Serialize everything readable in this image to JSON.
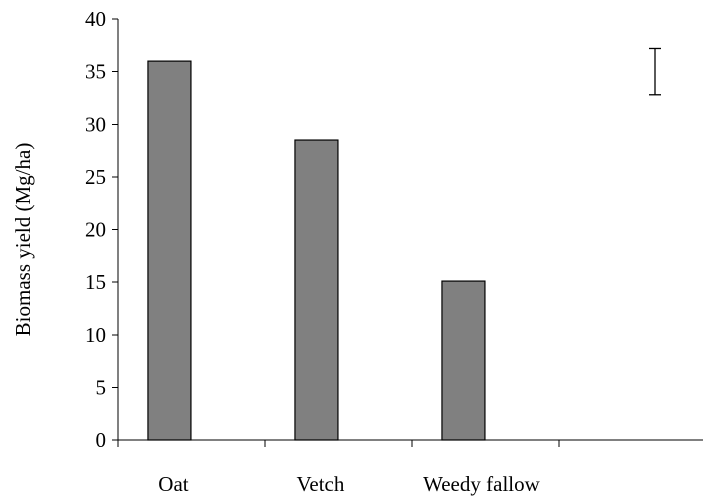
{
  "chart_data": {
    "type": "bar",
    "categories": [
      "Oat",
      "Vetch",
      "Weedy fallow"
    ],
    "values": [
      36,
      28.5,
      15.1
    ],
    "title": "",
    "xlabel": "",
    "ylabel": "Biomass yield (Mg/ha)",
    "ylim": [
      0,
      40
    ],
    "yticks": [
      0,
      5,
      10,
      15,
      20,
      25,
      30,
      35,
      40
    ],
    "grid": false,
    "bar_color": "#808080",
    "error_bar": {
      "low": 32.8,
      "high": 37.2
    }
  }
}
